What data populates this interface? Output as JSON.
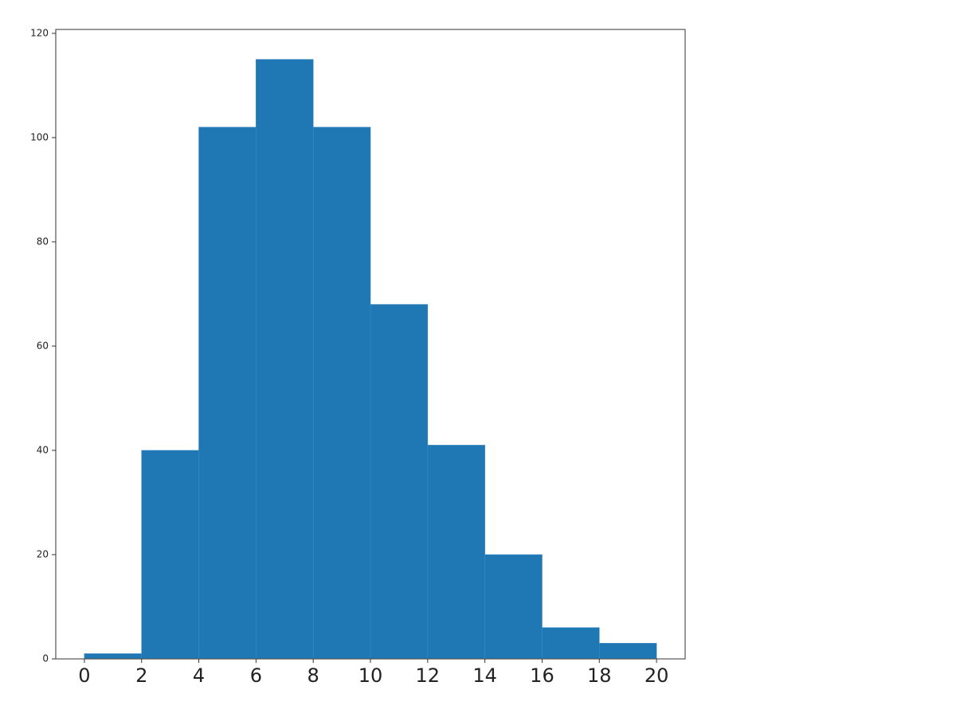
{
  "chart_data": {
    "type": "histogram",
    "bins": [
      0,
      2,
      4,
      6,
      8,
      10,
      12,
      14,
      16,
      18,
      20
    ],
    "counts": [
      1,
      40,
      102,
      115,
      102,
      68,
      41,
      20,
      6,
      3
    ],
    "color": "#1f77b4",
    "xlim": [
      -1,
      21
    ],
    "xticks": [
      0,
      2,
      4,
      6,
      8,
      10,
      12,
      14,
      16,
      18,
      20
    ],
    "ylim": [
      0,
      120.75
    ],
    "yticks": [
      0,
      20,
      40,
      60,
      80,
      100,
      120
    ],
    "grid": false
  }
}
